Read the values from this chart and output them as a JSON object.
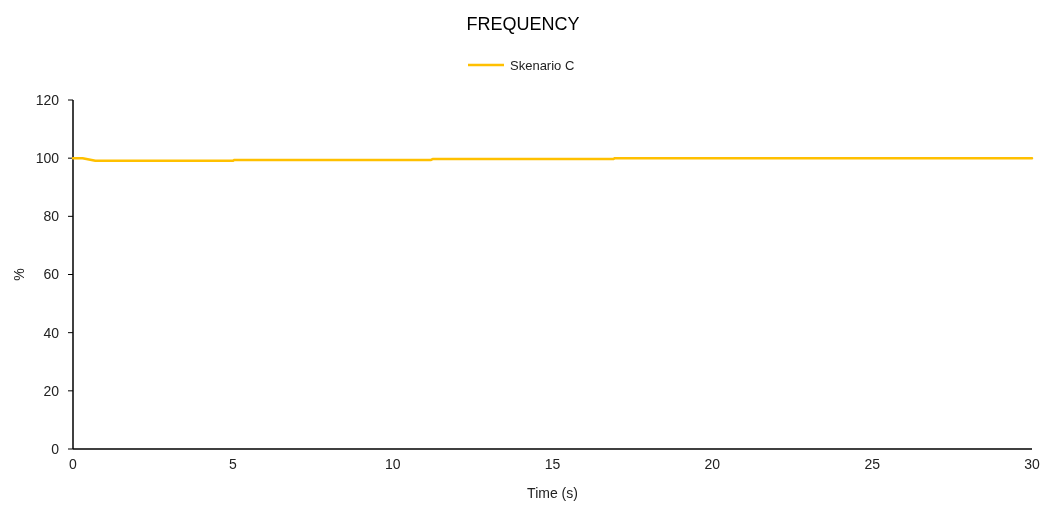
{
  "chart_data": {
    "type": "line",
    "title": "FREQUENCY",
    "xlabel": "Time (s)",
    "ylabel": "%",
    "xlim": [
      0,
      30
    ],
    "xticks": [
      0,
      5,
      10,
      15,
      20,
      25,
      30
    ],
    "ylim": [
      0,
      120
    ],
    "yticks": [
      0,
      20,
      40,
      60,
      80,
      100,
      120
    ],
    "grid": false,
    "legend": "top",
    "marker": "none",
    "line_style": "solid",
    "series": [
      {
        "name": "Skenario C",
        "color": "#ffc000",
        "x": [
          0,
          0.3,
          0.7,
          5,
          5.05,
          11.2,
          11.25,
          16.9,
          16.95,
          30
        ],
        "values": [
          100,
          100,
          99.1,
          99.1,
          99.4,
          99.4,
          99.7,
          99.7,
          100,
          100
        ]
      }
    ]
  }
}
